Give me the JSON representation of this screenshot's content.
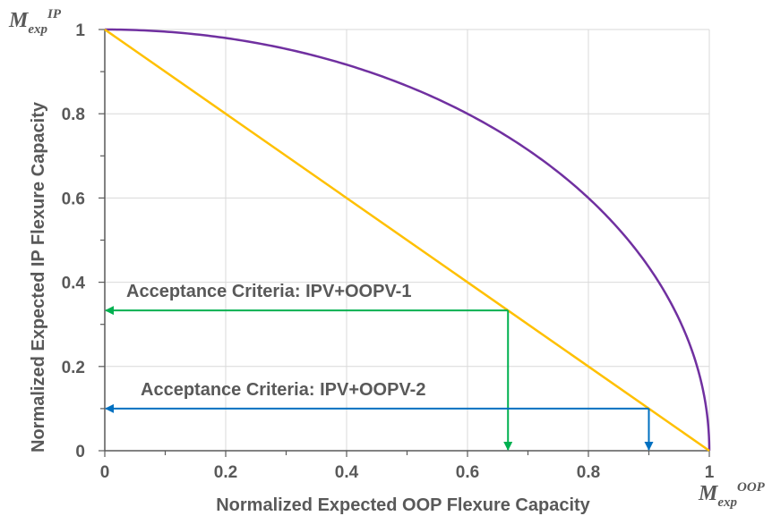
{
  "chart_data": {
    "type": "line",
    "xlabel": "Normalized Expected OOP Flexure Capacity",
    "ylabel": "Normalized Expected IP Flexure Capacity",
    "xlim": [
      0,
      1
    ],
    "ylim": [
      0,
      1
    ],
    "x_ticks": [
      "0",
      "0.2",
      "0.4",
      "0.6",
      "0.8",
      "1"
    ],
    "y_ticks": [
      "0",
      "0.2",
      "0.4",
      "0.6",
      "0.8",
      "1"
    ],
    "grid": true,
    "x_axis_end_label": {
      "base": "M",
      "sub": "exp",
      "sup": "OOP"
    },
    "y_axis_end_label": {
      "base": "M",
      "sub": "exp",
      "sup": "IP"
    },
    "series": [
      {
        "kind": "circular",
        "color": "#7030A0",
        "points": [
          [
            0,
            1
          ],
          [
            0.1,
            0.995
          ],
          [
            0.2,
            0.98
          ],
          [
            0.3,
            0.954
          ],
          [
            0.4,
            0.917
          ],
          [
            0.5,
            0.866
          ],
          [
            0.6,
            0.8
          ],
          [
            0.7,
            0.714
          ],
          [
            0.8,
            0.6
          ],
          [
            0.9,
            0.436
          ],
          [
            0.95,
            0.312
          ],
          [
            1,
            0
          ]
        ]
      },
      {
        "kind": "linear",
        "color": "#FFC000",
        "points": [
          [
            0,
            1
          ],
          [
            1,
            0
          ]
        ]
      }
    ],
    "annotations": [
      {
        "text": "Acceptance Criteria: IPV+OOPV-1",
        "color": "#00B050",
        "point": [
          0.667,
          0.333
        ]
      },
      {
        "text": "Acceptance Criteria: IPV+OOPV-2",
        "color": "#0070C0",
        "point": [
          0.9,
          0.1
        ]
      }
    ]
  }
}
